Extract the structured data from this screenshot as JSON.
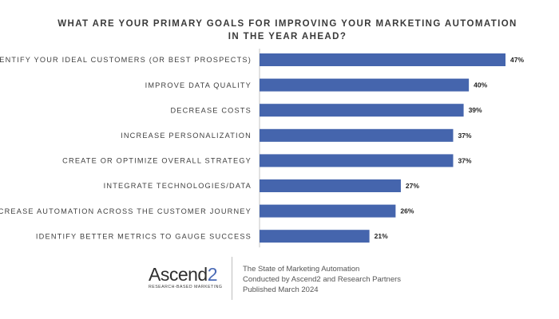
{
  "chart_data": {
    "type": "bar",
    "orientation": "horizontal",
    "title": "WHAT ARE YOUR PRIMARY GOALS FOR IMPROVING YOUR MARKETING AUTOMATION IN THE YEAR AHEAD?",
    "title_lines": [
      "WHAT ARE YOUR PRIMARY GOALS FOR IMPROVING YOUR MARKETING AUTOMATION",
      "IN THE YEAR AHEAD?"
    ],
    "categories": [
      "IDENTIFY YOUR IDEAL CUSTOMERS (OR BEST PROSPECTS)",
      "IMPROVE DATA QUALITY",
      "DECREASE COSTS",
      "INCREASE PERSONALIZATION",
      "CREATE OR OPTIMIZE OVERALL STRATEGY",
      "INTEGRATE TECHNOLOGIES/DATA",
      "INCREASE AUTOMATION ACROSS THE CUSTOMER JOURNEY",
      "IDENTIFY BETTER METRICS TO GAUGE SUCCESS"
    ],
    "values": [
      47,
      40,
      39,
      37,
      37,
      27,
      26,
      21
    ],
    "value_labels": [
      "47%",
      "40%",
      "39%",
      "37%",
      "37%",
      "27%",
      "26%",
      "21%"
    ],
    "xlim": [
      0,
      47
    ],
    "grid": false,
    "bar_color": "#4565ad",
    "axis_color": "#c4c4c4"
  },
  "footer": {
    "logo_word": "Ascend",
    "logo_number": "2",
    "logo_tagline": "RESEARCH-BASED MARKETING",
    "source_lines": [
      "The State of Marketing Automation",
      "Conducted by Ascend2 and Research Partners",
      "Published March 2024"
    ]
  }
}
